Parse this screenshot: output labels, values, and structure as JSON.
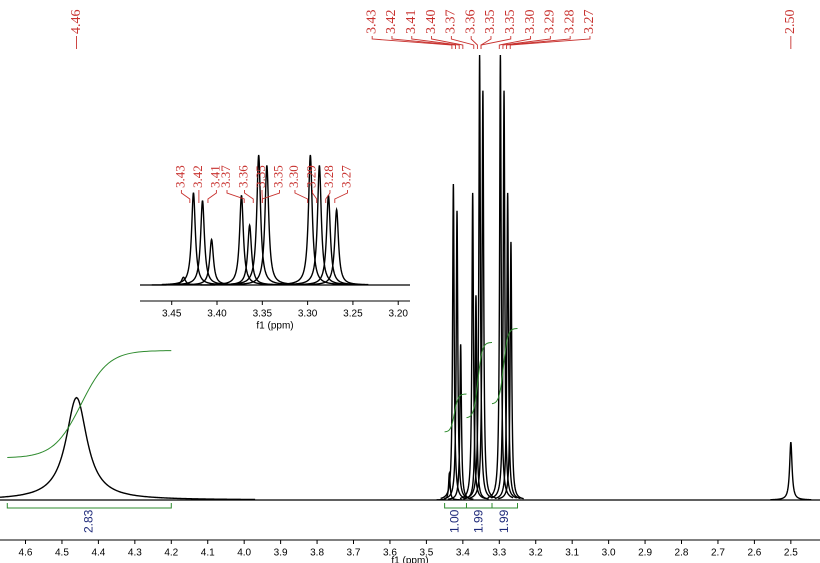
{
  "chart_data": {
    "type": "line",
    "xlabel": "f1 (ppm)",
    "xlim": [
      4.67,
      2.42
    ],
    "ylim": [
      0,
      100
    ],
    "xticks": [
      4.6,
      4.5,
      4.4,
      4.3,
      4.2,
      4.1,
      {
        "value": 4,
        "label": "4.0"
      },
      3.9,
      3.8,
      3.7,
      3.6,
      3.5,
      3.4,
      3.3,
      3.2,
      3.1,
      {
        "value": 3,
        "label": "3.0"
      },
      2.9,
      2.8,
      2.7,
      2.6,
      2.5
    ],
    "color": "#000000",
    "label_color": "#c8322f",
    "integral_color": "#2e8b2e",
    "peaks": {
      "x": [
        4.46,
        3.437,
        3.426,
        3.416,
        3.406,
        3.373,
        3.364,
        3.354,
        3.345,
        3.297,
        3.287,
        3.277,
        3.268,
        2.5
      ],
      "values": [
        23,
        6,
        71,
        65,
        35,
        69,
        46,
        100,
        92,
        100,
        92,
        69,
        58,
        13
      ],
      "widths": [
        0.035,
        0.0025,
        0.0025,
        0.0025,
        0.0025,
        0.0025,
        0.0025,
        0.0025,
        0.0025,
        0.0025,
        0.0025,
        0.0025,
        0.0025,
        0.004
      ]
    },
    "peak_labels": [
      4.46,
      3.43,
      3.42,
      3.41,
      {
        "value": 3.4,
        "label": "3.40"
      },
      3.37,
      3.36,
      3.35,
      3.35,
      {
        "value": 3.3,
        "label": "3.30"
      },
      3.29,
      3.28,
      3.27,
      {
        "value": 2.5,
        "label": "2.50"
      }
    ],
    "integrals": [
      {
        "from": 4.65,
        "to": 4.2,
        "value": 2.83
      },
      {
        "from": 3.45,
        "to": 3.39,
        "value": 1,
        "label": "1.00"
      },
      {
        "from": 3.39,
        "to": 3.32,
        "value": 1.99
      },
      {
        "from": 3.32,
        "to": 3.25,
        "value": 1.99
      }
    ],
    "inset": {
      "type": "line",
      "xlabel": "f1 (ppm)",
      "xlim": [
        3.485,
        3.187
      ],
      "xticks": [
        3.45,
        {
          "value": 3.4,
          "label": "3.40"
        },
        3.35,
        {
          "value": 3.3,
          "label": "3.30"
        },
        3.25,
        {
          "value": 3.2,
          "label": "3.20"
        }
      ],
      "peak_labels": [
        3.43,
        3.42,
        3.41,
        3.37,
        3.36,
        3.35,
        3.35,
        {
          "value": 3.3,
          "label": "3.30"
        },
        3.29,
        3.28,
        3.27
      ]
    }
  }
}
